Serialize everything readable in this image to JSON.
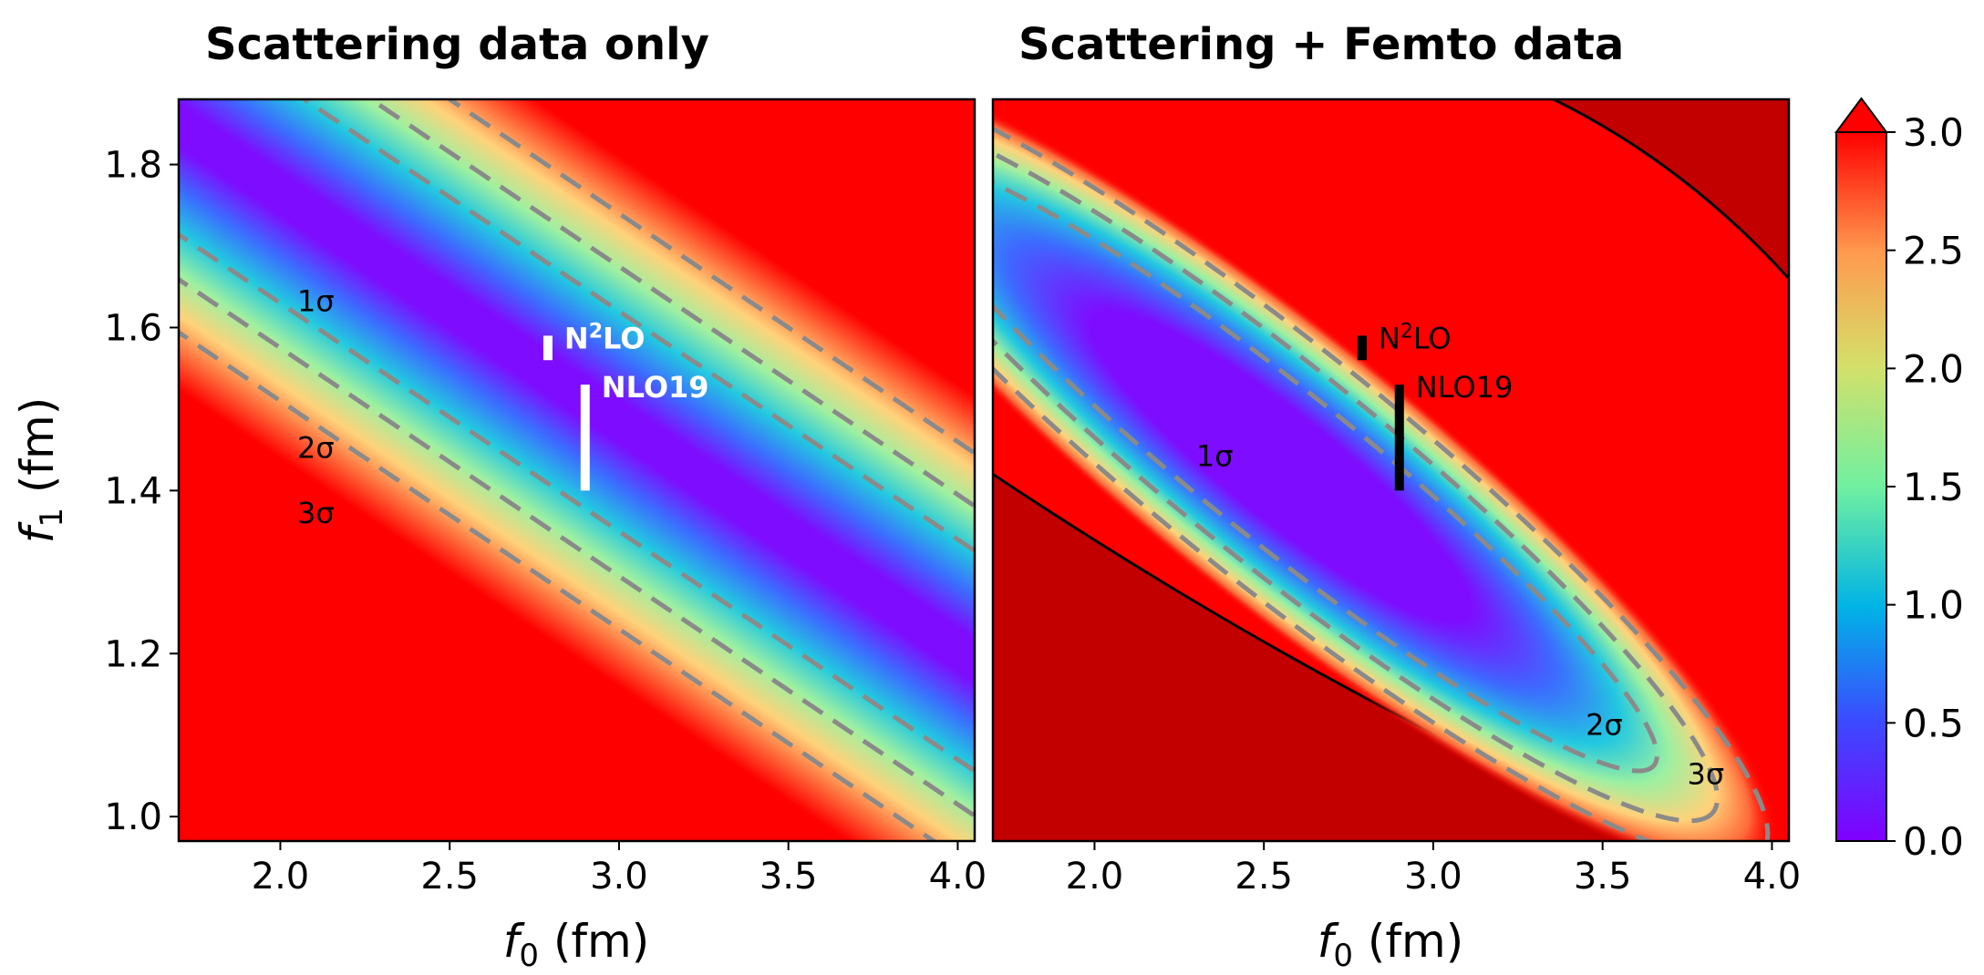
{
  "chart_data": [
    {
      "type": "heatmap",
      "title": "Scattering data only",
      "xlabel": "f0 (fm)",
      "ylabel": "f1 (fm)",
      "xlim": [
        1.7,
        4.05
      ],
      "ylim": [
        0.97,
        1.88
      ],
      "xticks": [
        "2.0",
        "2.5",
        "3.0",
        "3.5",
        "4.0"
      ],
      "xtick_values": [
        2.0,
        2.5,
        3.0,
        3.5,
        4.0
      ],
      "yticks": [
        "1.0",
        "1.2",
        "1.4",
        "1.6",
        "1.8"
      ],
      "ytick_values": [
        1.0,
        1.2,
        1.4,
        1.6,
        1.8
      ],
      "valley": {
        "center": [
          3.0,
          1.485
        ],
        "slope": -0.28,
        "half_width_f1_at_3sigma": 0.2
      },
      "contour_levels": [
        {
          "label": "1σ",
          "label_pos": [
            2.05,
            1.62
          ]
        },
        {
          "label": "2σ",
          "label_pos": [
            2.05,
            1.44
          ]
        },
        {
          "label": "3σ",
          "label_pos": [
            2.05,
            1.36
          ]
        }
      ],
      "markers": [
        {
          "label": "N²LO",
          "label_base": "N",
          "label_sup": "2",
          "label_tail": "LO",
          "x": 2.79,
          "y_low": 1.56,
          "y_high": 1.59,
          "color": "#ffffff"
        },
        {
          "label": "NLO19",
          "x": 2.9,
          "y_low": 1.4,
          "y_high": 1.53,
          "color": "#ffffff"
        }
      ]
    },
    {
      "type": "heatmap",
      "title": "Scattering + Femto data",
      "xlabel": "f0 (fm)",
      "xlim": [
        1.7,
        4.05
      ],
      "ylim": [
        0.97,
        1.88
      ],
      "xticks": [
        "2.0",
        "2.5",
        "3.0",
        "3.5",
        "4.0"
      ],
      "xtick_values": [
        2.0,
        2.5,
        3.0,
        3.5,
        4.0
      ],
      "valley": {
        "center": [
          2.55,
          1.43
        ],
        "slope": -0.333,
        "half_length_f0": 1.45
      },
      "contour_levels": [
        {
          "label": "1σ",
          "label_pos": [
            2.3,
            1.43
          ]
        },
        {
          "label": "2σ",
          "label_pos": [
            3.45,
            1.1
          ]
        },
        {
          "label": "3σ",
          "label_pos": [
            3.75,
            1.04
          ]
        }
      ],
      "excluded_regions_color": "#c20000",
      "markers": [
        {
          "label": "N²LO",
          "label_base": "N",
          "label_sup": "2",
          "label_tail": "LO",
          "x": 2.79,
          "y_low": 1.56,
          "y_high": 1.59,
          "color": "#000000"
        },
        {
          "label": "NLO19",
          "x": 2.9,
          "y_low": 1.4,
          "y_high": 1.53,
          "color": "#000000"
        }
      ]
    }
  ],
  "colorbar": {
    "ticks": [
      "0.0",
      "0.5",
      "1.0",
      "1.5",
      "2.0",
      "2.5",
      "3.0"
    ],
    "tick_values": [
      0.0,
      0.5,
      1.0,
      1.5,
      2.0,
      2.5,
      3.0
    ],
    "range": [
      0.0,
      3.0
    ],
    "colormap": "rainbow",
    "extend": "max"
  },
  "colors": {
    "saturated": "#ff0000",
    "excluded": "#c20000",
    "contour": "#8a8a8a"
  }
}
